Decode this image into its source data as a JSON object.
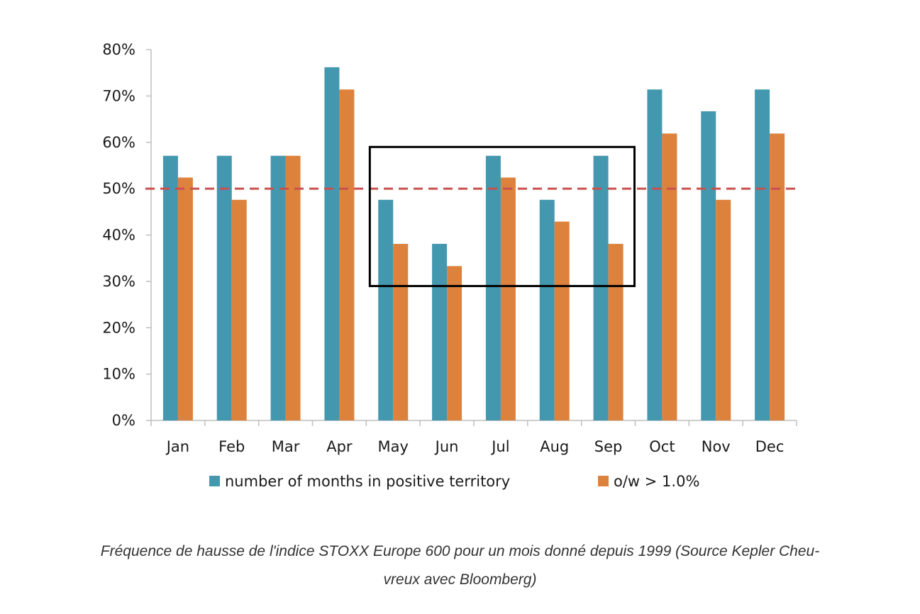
{
  "chart_data": {
    "type": "bar",
    "title": "",
    "xlabel": "",
    "ylabel": "",
    "ylim": [
      0,
      80
    ],
    "yticks": [
      0,
      10,
      20,
      30,
      40,
      50,
      60,
      70,
      80
    ],
    "ytick_labels": [
      "0%",
      "10%",
      "20%",
      "30%",
      "40%",
      "50%",
      "60%",
      "70%",
      "80%"
    ],
    "categories": [
      "Jan",
      "Feb",
      "Mar",
      "Apr",
      "May",
      "Jun",
      "Jul",
      "Aug",
      "Sep",
      "Oct",
      "Nov",
      "Dec"
    ],
    "series": [
      {
        "name": "number of months in positive territory",
        "color": "#4397AE",
        "values": [
          57.1,
          57.1,
          57.1,
          76.2,
          47.6,
          38.1,
          57.1,
          47.6,
          57.1,
          71.4,
          66.7,
          71.4
        ]
      },
      {
        "name": "o/w > 1.0%",
        "color": "#DD823D",
        "values": [
          52.4,
          47.6,
          57.1,
          71.4,
          38.1,
          33.3,
          52.4,
          42.9,
          38.1,
          61.9,
          47.6,
          61.9
        ]
      }
    ],
    "reference_line": {
      "value": 50,
      "style": "dashed",
      "color": "#C9504F"
    },
    "highlight_box": {
      "from_category": "May",
      "to_category": "Sep",
      "y_range": [
        29,
        59
      ],
      "color": "#000000"
    },
    "grid": false,
    "legend": {
      "position": "bottom"
    }
  },
  "caption": {
    "line1": "Fréquence de hausse de l'indice STOXX Europe 600 pour un mois donné depuis 1999 (Source Kepler Cheu-",
    "line2": "vreux avec Bloomberg)"
  }
}
